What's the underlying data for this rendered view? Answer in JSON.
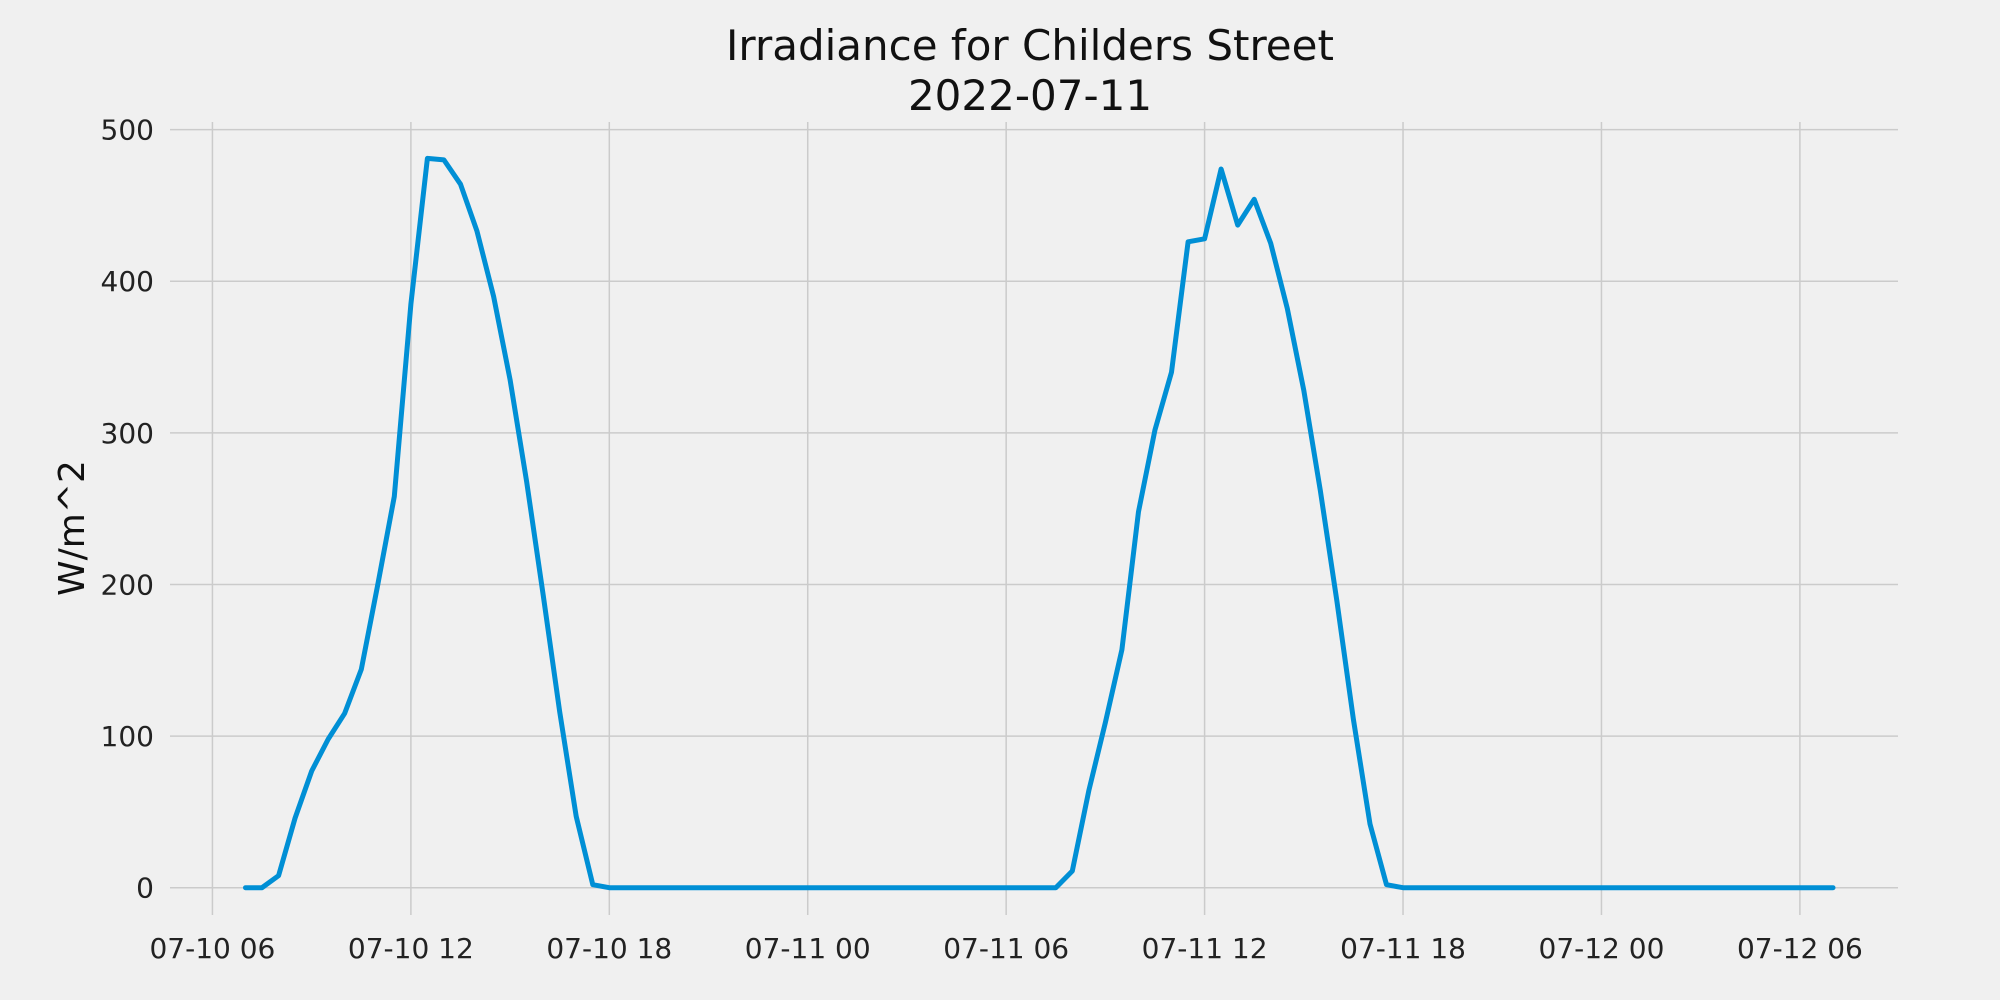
{
  "chart_data": {
    "type": "line",
    "title": "Irradiance for Childers Street",
    "subtitle": "2022-07-11",
    "xlabel": "",
    "ylabel": "W/m^2",
    "ylim": [
      -18,
      505
    ],
    "xlim": [
      "2022-07-10 04:43",
      "2022-07-12 08:58"
    ],
    "x_ticks": [
      {
        "label": "07-10 06",
        "value": "2022-07-10 06:00"
      },
      {
        "label": "07-10 12",
        "value": "2022-07-10 12:00"
      },
      {
        "label": "07-10 18",
        "value": "2022-07-10 18:00"
      },
      {
        "label": "07-11 00",
        "value": "2022-07-11 00:00"
      },
      {
        "label": "07-11 06",
        "value": "2022-07-11 06:00"
      },
      {
        "label": "07-11 12",
        "value": "2022-07-11 12:00"
      },
      {
        "label": "07-11 18",
        "value": "2022-07-11 18:00"
      },
      {
        "label": "07-12 00",
        "value": "2022-07-12 00:00"
      },
      {
        "label": "07-12 06",
        "value": "2022-07-12 06:00"
      }
    ],
    "y_ticks": [
      0,
      100,
      200,
      300,
      400,
      500
    ],
    "grid": true,
    "color": "#008fd5",
    "series": [
      {
        "x": [
          "2022-07-10 07:00",
          "2022-07-10 07:30",
          "2022-07-10 08:00",
          "2022-07-10 08:30",
          "2022-07-10 09:00",
          "2022-07-10 09:30",
          "2022-07-10 10:00",
          "2022-07-10 10:30",
          "2022-07-10 11:00",
          "2022-07-10 11:30",
          "2022-07-10 12:00",
          "2022-07-10 12:30",
          "2022-07-10 13:00",
          "2022-07-10 13:30",
          "2022-07-10 14:00",
          "2022-07-10 14:30",
          "2022-07-10 15:00",
          "2022-07-10 15:30",
          "2022-07-10 16:00",
          "2022-07-10 16:30",
          "2022-07-10 17:00",
          "2022-07-10 17:30",
          "2022-07-10 18:00",
          "2022-07-11 07:30",
          "2022-07-11 08:00",
          "2022-07-11 08:30",
          "2022-07-11 09:00",
          "2022-07-11 09:30",
          "2022-07-11 10:00",
          "2022-07-11 10:30",
          "2022-07-11 11:00",
          "2022-07-11 11:30",
          "2022-07-11 12:00",
          "2022-07-11 12:30",
          "2022-07-11 13:00",
          "2022-07-11 13:30",
          "2022-07-11 14:00",
          "2022-07-11 14:30",
          "2022-07-11 15:00",
          "2022-07-11 15:30",
          "2022-07-11 16:00",
          "2022-07-11 16:30",
          "2022-07-11 17:00",
          "2022-07-11 17:30",
          "2022-07-11 18:00",
          "2022-07-12 07:00"
        ],
        "values": [
          0,
          0,
          8,
          46,
          77,
          98,
          115,
          144,
          200,
          258,
          385,
          481,
          480,
          464,
          433,
          390,
          335,
          268,
          193,
          116,
          47,
          2,
          0,
          0,
          11,
          64,
          109,
          157,
          248,
          302,
          340,
          426,
          428,
          474,
          437,
          454,
          425,
          382,
          328,
          262,
          189,
          111,
          42,
          2,
          0,
          0
        ]
      }
    ]
  }
}
